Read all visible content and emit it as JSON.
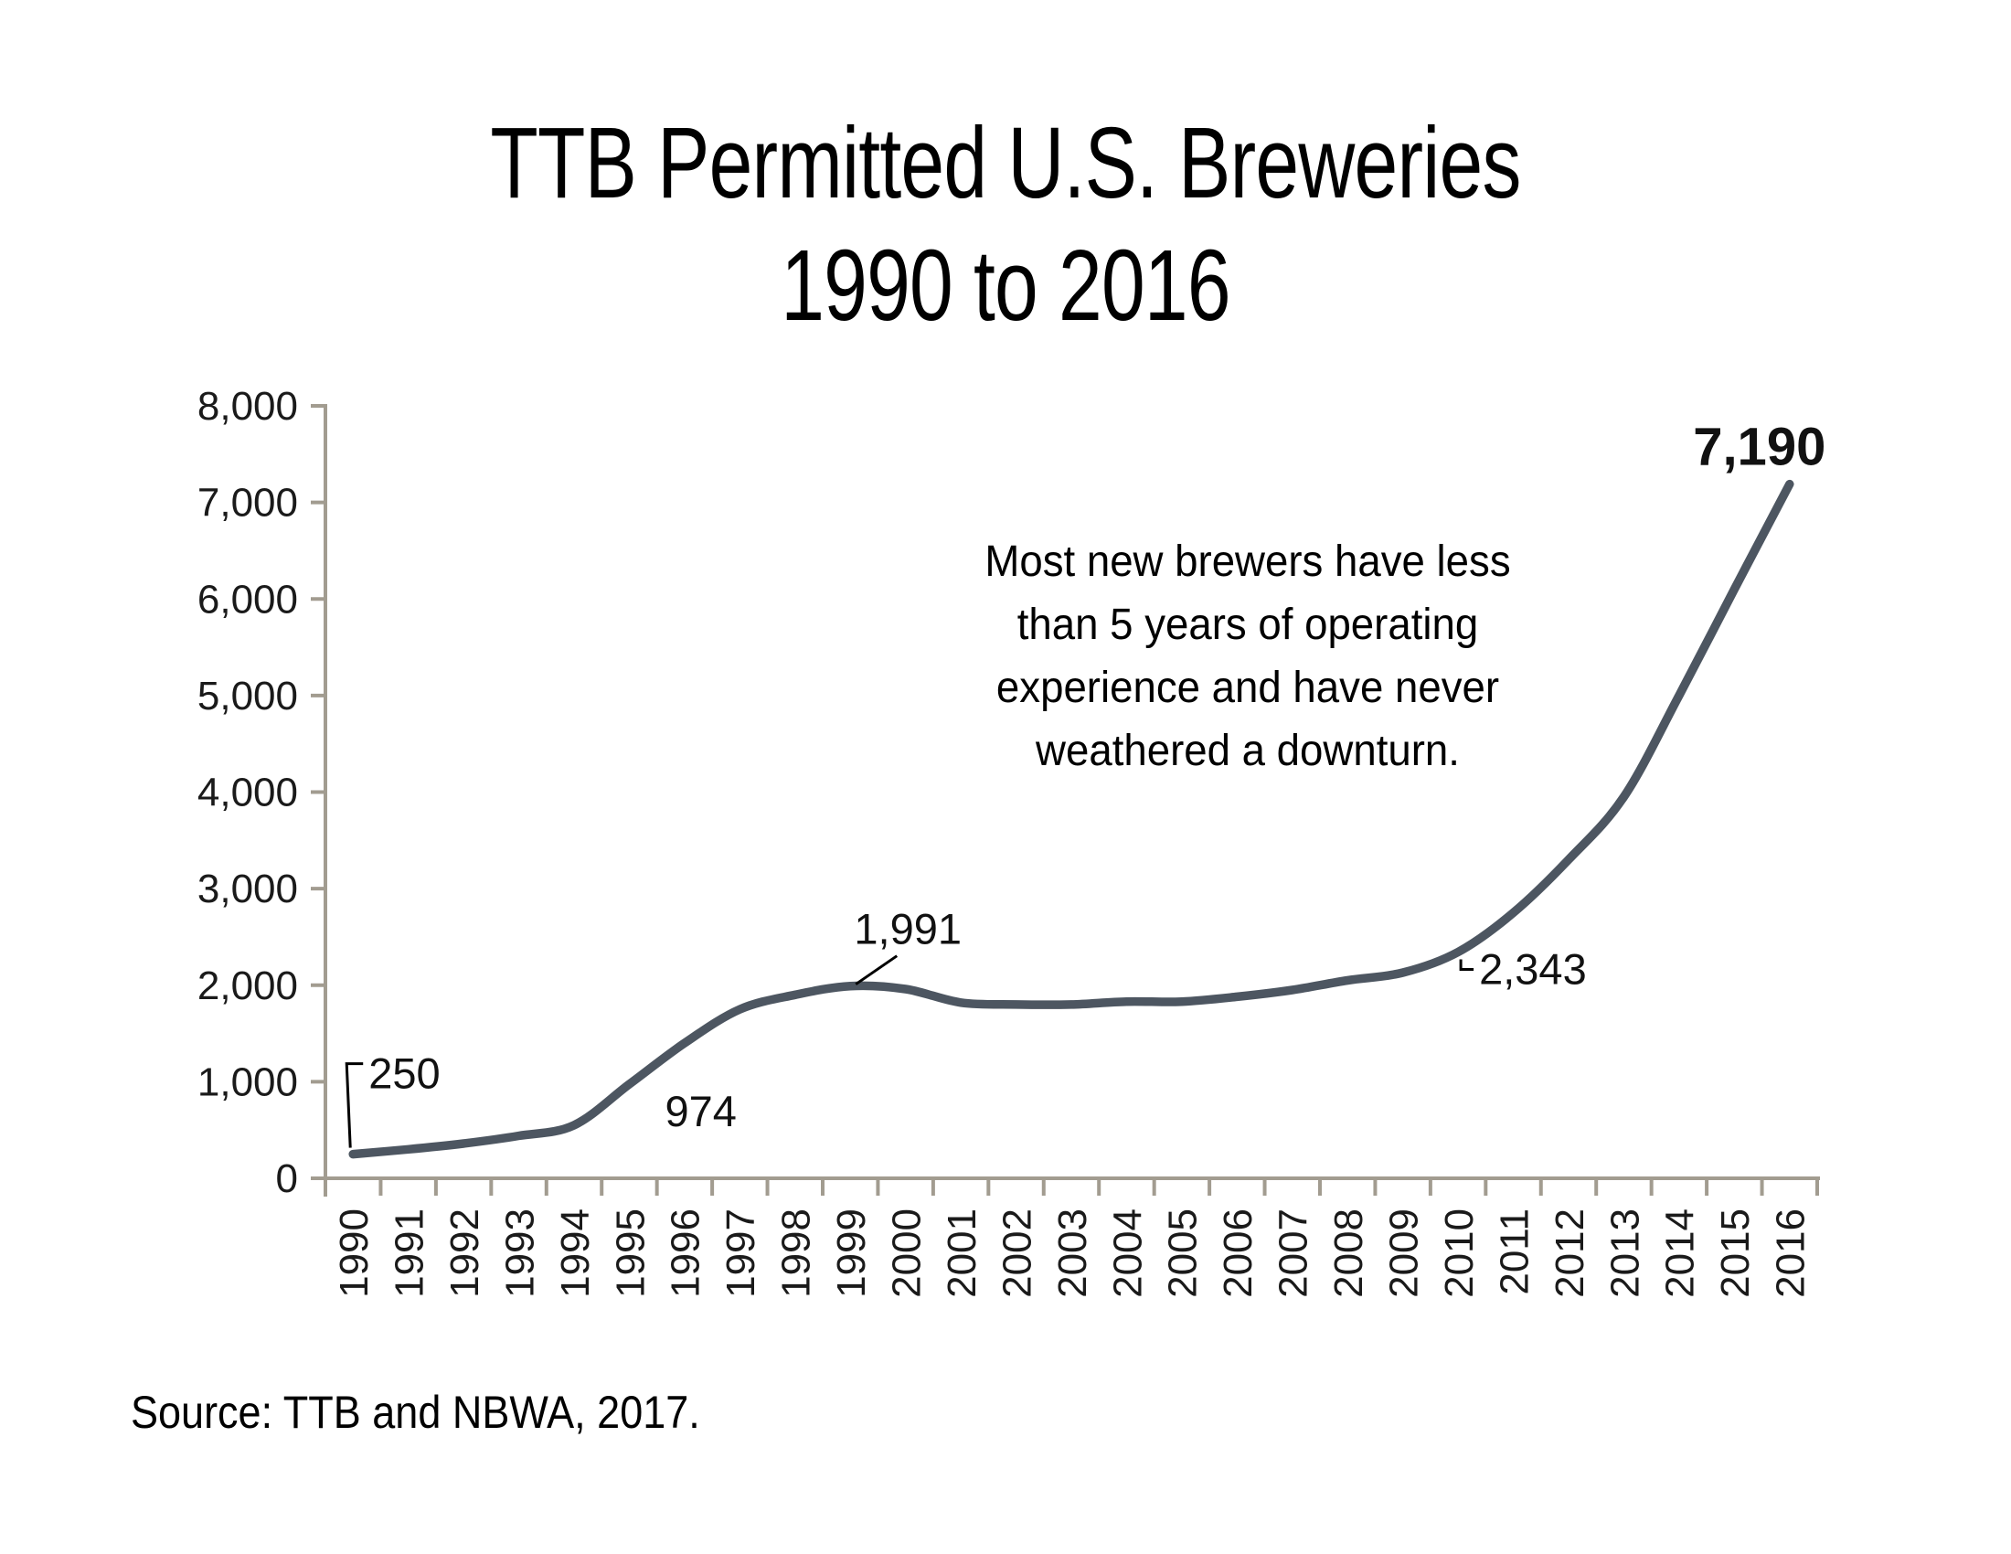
{
  "title": {
    "line1": "TTB Permitted U.S. Breweries",
    "line2": "1990 to 2016"
  },
  "annotation": {
    "lines": [
      "Most new brewers have less",
      "than 5 years of operating",
      "experience and have never",
      "weathered a downturn."
    ]
  },
  "source": {
    "text": "Source: TTB and NBWA, 2017."
  },
  "chart_data": {
    "type": "line",
    "title": "TTB Permitted U.S. Breweries 1990 to 2016",
    "series_name": "TTB permitted U.S. breweries",
    "x": [
      1990,
      1991,
      1992,
      1993,
      1994,
      1995,
      1996,
      1997,
      1998,
      1999,
      2000,
      2001,
      2002,
      2003,
      2004,
      2005,
      2006,
      2007,
      2008,
      2009,
      2010,
      2011,
      2012,
      2013,
      2014,
      2015,
      2016
    ],
    "values": [
      250,
      300,
      360,
      440,
      550,
      974,
      1400,
      1750,
      1900,
      1991,
      1960,
      1820,
      1800,
      1800,
      1830,
      1830,
      1880,
      1950,
      2050,
      2130,
      2343,
      2750,
      3300,
      3950,
      5000,
      6100,
      7190
    ],
    "xlabel": "",
    "ylabel": "",
    "ylim": [
      0,
      8000
    ],
    "ytick_interval": 1000,
    "ytick_labels": [
      "0",
      "1,000",
      "2,000",
      "3,000",
      "4,000",
      "5,000",
      "6,000",
      "7,000",
      "8,000"
    ],
    "grid": "off",
    "legend": "none",
    "smoothed": true,
    "line_color": "#4d5661",
    "axis_color": "#a29c90",
    "label_color": "#1a1a1a",
    "callouts": [
      {
        "year": 1990,
        "value": 250,
        "label": "250",
        "placement": "bracket-left"
      },
      {
        "year": 1995,
        "value": 974,
        "label": "974",
        "placement": "below-right"
      },
      {
        "year": 1999,
        "value": 1991,
        "label": "1,991",
        "placement": "diagonal-above"
      },
      {
        "year": 2010,
        "value": 2343,
        "label": "2,343",
        "placement": "elbow-right"
      },
      {
        "year": 2016,
        "value": 7190,
        "label": "7,190",
        "placement": "above-end",
        "emphasis": true
      }
    ]
  }
}
